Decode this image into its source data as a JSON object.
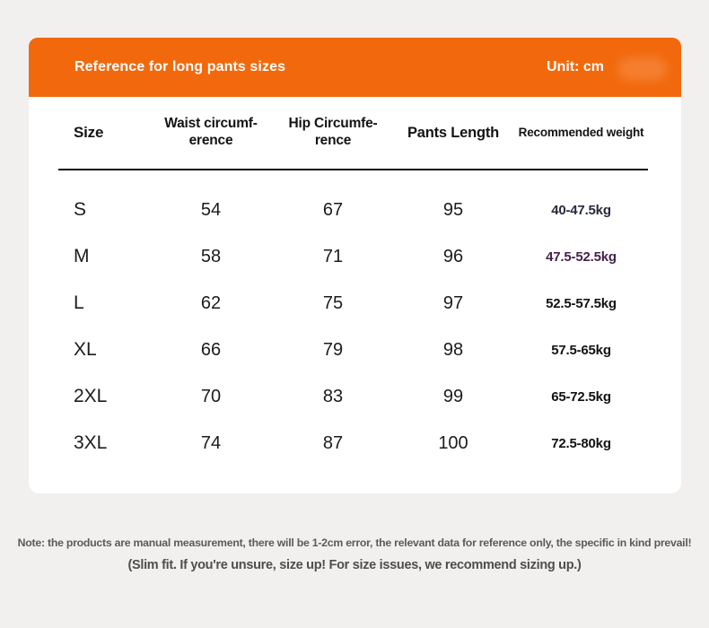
{
  "header": {
    "title": "Reference for long pants sizes",
    "unit": "Unit: cm",
    "background_color": "#f2690d",
    "text_color": "#ffffff"
  },
  "table": {
    "columns": [
      {
        "label": "Size"
      },
      {
        "label": "Waist circumf-\nerence"
      },
      {
        "label": "Hip Circumfe-\nrence"
      },
      {
        "label": "Pants Length"
      },
      {
        "label": "Recommended weight"
      }
    ],
    "rows": [
      {
        "size": "S",
        "waist": "54",
        "hip": "67",
        "length": "95",
        "weight": "40-47.5kg",
        "weight_color": "#262a3e"
      },
      {
        "size": "M",
        "waist": "58",
        "hip": "71",
        "length": "96",
        "weight": "47.5-52.5kg",
        "weight_color": "#44234c"
      },
      {
        "size": "L",
        "waist": "62",
        "hip": "75",
        "length": "97",
        "weight": "52.5-57.5kg",
        "weight_color": "#121212"
      },
      {
        "size": "XL",
        "waist": "66",
        "hip": "79",
        "length": "98",
        "weight": "57.5-65kg",
        "weight_color": "#121212"
      },
      {
        "size": "2XL",
        "waist": "70",
        "hip": "83",
        "length": "99",
        "weight": "65-72.5kg",
        "weight_color": "#121212"
      },
      {
        "size": "3XL",
        "waist": "74",
        "hip": "87",
        "length": "100",
        "weight": "72.5-80kg",
        "weight_color": "#121212"
      }
    ]
  },
  "notes": {
    "line1": "Note: the products are manual measurement, there will be 1-2cm error, the relevant data for reference only, the specific in kind prevail!",
    "line2": "(Slim fit. If you're unsure, size up! For size issues, we recommend sizing up.)"
  },
  "colors": {
    "page_background": "#f1f0ee",
    "card_background": "#ffffff",
    "header_rule": "#0c0c0c",
    "note_text": "#5b5b5b"
  }
}
